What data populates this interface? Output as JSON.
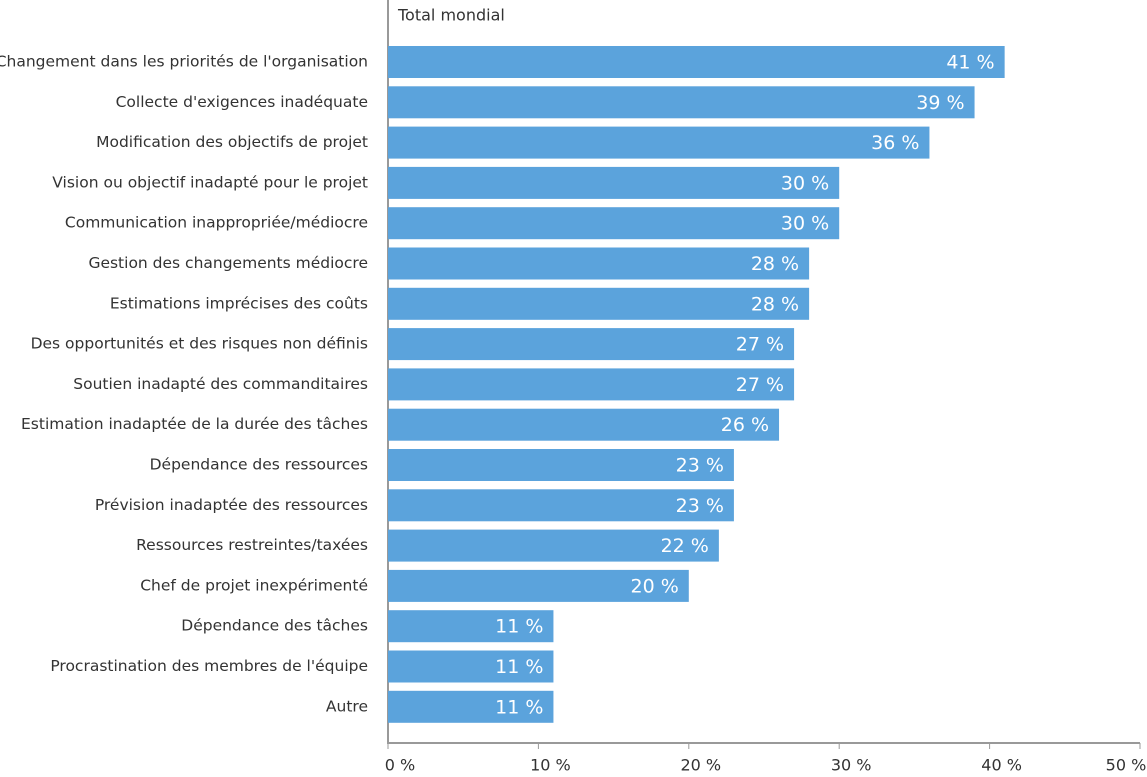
{
  "chart_data": {
    "type": "bar",
    "orientation": "horizontal",
    "title": "Total mondial",
    "categories": [
      "Changement dans les priorités de l'organisation",
      "Collecte d'exigences inadéquate",
      "Modification des objectifs de projet",
      "Vision ou objectif inadapté pour le projet",
      "Communication inappropriée/médiocre",
      "Gestion des changements médiocre",
      "Estimations imprécises des coûts",
      "Des opportunités et des risques non définis",
      "Soutien inadapté des commanditaires",
      "Estimation inadaptée de la durée des tâches",
      "Dépendance des ressources",
      "Prévision inadaptée des ressources",
      "Ressources restreintes/taxées",
      "Chef de projet inexpérimenté",
      "Dépendance des tâches",
      "Procrastination des membres de l'équipe",
      "Autre"
    ],
    "values": [
      41,
      39,
      36,
      30,
      30,
      28,
      28,
      27,
      27,
      26,
      23,
      23,
      22,
      20,
      11,
      11,
      11
    ],
    "value_labels": [
      "41 %",
      "39 %",
      "36 %",
      "30 %",
      "30 %",
      "28 %",
      "28 %",
      "27 %",
      "27 %",
      "26 %",
      "23 %",
      "23 %",
      "22 %",
      "20 %",
      "11 %",
      "11 %",
      "11 %"
    ],
    "color": "#5ba3dc",
    "xlim": [
      0,
      50
    ],
    "xticks": [
      {
        "value": 0,
        "label": "0 %"
      },
      {
        "value": 10,
        "label": "10 %"
      },
      {
        "value": 20,
        "label": "20 %"
      },
      {
        "value": 30,
        "label": "30 %"
      },
      {
        "value": 40,
        "label": "40 %"
      },
      {
        "value": 50,
        "label": "50 %"
      }
    ]
  }
}
